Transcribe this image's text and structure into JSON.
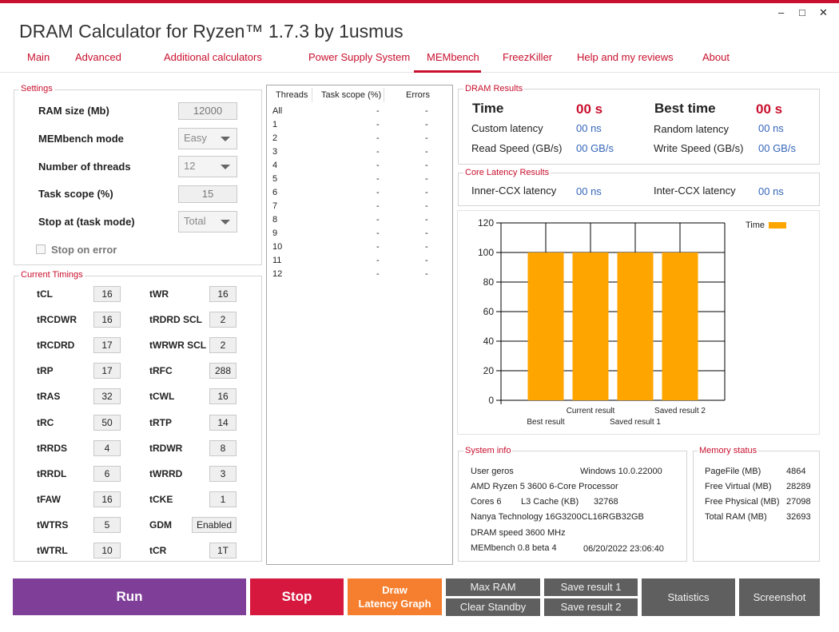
{
  "window": {
    "title": "DRAM Calculator for Ryzen™ 1.7.3 by 1usmus",
    "minimize": "–",
    "maximize": "□",
    "close": "✕"
  },
  "tabs": [
    "Main",
    "Advanced",
    "Additional calculators",
    "Power Supply System",
    "MEMbench",
    "FreezKiller",
    "Help and my reviews",
    "About"
  ],
  "settings": {
    "title": "Settings",
    "ram_size_label": "RAM size (Mb)",
    "ram_size_value": "12000",
    "mode_label": "MEMbench mode",
    "mode_value": "Easy",
    "threads_label": "Number of threads",
    "threads_value": "12",
    "scope_label": "Task scope (%)",
    "scope_value": "15",
    "stop_label": "Stop at (task mode)",
    "stop_value": "Total",
    "stop_error_label": "Stop on error"
  },
  "timings": {
    "title": "Current Timings",
    "left": [
      {
        "name": "tCL",
        "value": "16"
      },
      {
        "name": "tRCDWR",
        "value": "16"
      },
      {
        "name": "tRCDRD",
        "value": "17"
      },
      {
        "name": "tRP",
        "value": "17"
      },
      {
        "name": "tRAS",
        "value": "32"
      },
      {
        "name": "tRC",
        "value": "50"
      },
      {
        "name": "tRRDS",
        "value": "4"
      },
      {
        "name": "tRRDL",
        "value": "6"
      },
      {
        "name": "tFAW",
        "value": "16"
      },
      {
        "name": "tWTRS",
        "value": "5"
      },
      {
        "name": "tWTRL",
        "value": "10"
      }
    ],
    "right": [
      {
        "name": "tWR",
        "value": "16"
      },
      {
        "name": "tRDRD SCL",
        "value": "2"
      },
      {
        "name": "tWRWR SCL",
        "value": "2"
      },
      {
        "name": "tRFC",
        "value": "288"
      },
      {
        "name": "tCWL",
        "value": "16"
      },
      {
        "name": "tRTP",
        "value": "14"
      },
      {
        "name": "tRDWR",
        "value": "8"
      },
      {
        "name": "tWRRD",
        "value": "3"
      },
      {
        "name": "tCKE",
        "value": "1"
      },
      {
        "name": "GDM",
        "value": "Enabled"
      },
      {
        "name": "tCR",
        "value": "1T"
      }
    ]
  },
  "threads_table": {
    "headers": [
      "Threads",
      "Task scope (%)",
      "Errors"
    ],
    "rows": [
      {
        "t": "All",
        "s": "-",
        "e": "-"
      },
      {
        "t": "1",
        "s": "-",
        "e": "-"
      },
      {
        "t": "2",
        "s": "-",
        "e": "-"
      },
      {
        "t": "3",
        "s": "-",
        "e": "-"
      },
      {
        "t": "4",
        "s": "-",
        "e": "-"
      },
      {
        "t": "5",
        "s": "-",
        "e": "-"
      },
      {
        "t": "6",
        "s": "-",
        "e": "-"
      },
      {
        "t": "7",
        "s": "-",
        "e": "-"
      },
      {
        "t": "8",
        "s": "-",
        "e": "-"
      },
      {
        "t": "9",
        "s": "-",
        "e": "-"
      },
      {
        "t": "10",
        "s": "-",
        "e": "-"
      },
      {
        "t": "11",
        "s": "-",
        "e": "-"
      },
      {
        "t": "12",
        "s": "-",
        "e": "-"
      }
    ]
  },
  "dram_results": {
    "title": "DRAM Results",
    "time_label": "Time",
    "time_value": "00 s",
    "best_label": "Best time",
    "best_value": "00 s",
    "custom_label": "Custom latency",
    "custom_value": "00 ns",
    "random_label": "Random latency",
    "random_value": "00 ns",
    "read_label": "Read Speed (GB/s)",
    "read_value": "00 GB/s",
    "write_label": "Write Speed (GB/s)",
    "write_value": "00 GB/s"
  },
  "core_latency": {
    "title": "Core Latency Results",
    "inner_label": "Inner-CCX latency",
    "inner_value": "00 ns",
    "inter_label": "Inter-CCX latency",
    "inter_value": "00 ns"
  },
  "chart_data": {
    "type": "bar",
    "categories": [
      "Best result",
      "Current result",
      "Saved result 1",
      "Saved result 2"
    ],
    "series": [
      {
        "name": "Time",
        "values": [
          100,
          100,
          100,
          100
        ]
      }
    ],
    "yticks": [
      "0",
      "20",
      "40",
      "60",
      "80",
      "100",
      "120"
    ],
    "ylim": [
      0,
      120
    ],
    "legend": "top-right",
    "color": "#ffa500",
    "grid": true
  },
  "system_info": {
    "title": "System info",
    "user": "User geros",
    "os": "Windows 10.0.22000",
    "cpu": "AMD Ryzen 5 3600 6-Core Processor",
    "cores": "Cores 6",
    "l3_label": "L3 Cache (KB)",
    "l3_value": "32768",
    "ram": "Nanya Technology 16G3200CL16RGB32GB",
    "speed": "DRAM speed 3600 MHz",
    "bench": "MEMbench 0.8 beta 4",
    "date": "06/20/2022 23:06:40"
  },
  "memory_status": {
    "title": "Memory status",
    "rows": [
      {
        "label": "PageFile (MB)",
        "value": "4864"
      },
      {
        "label": "Free Virtual (MB)",
        "value": "28289"
      },
      {
        "label": "Free Physical (MB)",
        "value": "27098"
      },
      {
        "label": "Total RAM (MB)",
        "value": "32693"
      }
    ]
  },
  "buttons": {
    "run": "Run",
    "stop": "Stop",
    "draw_line1": "Draw",
    "draw_line2": "Latency Graph",
    "max_ram": "Max RAM",
    "clear_standby": "Clear Standby",
    "save1": "Save result 1",
    "save2": "Save result 2",
    "statistics": "Statistics",
    "screenshot": "Screenshot",
    "colors": {
      "run": "#7f3f98",
      "stop": "#d6183f",
      "draw": "#f57f2e",
      "gray": "#5f5f5f"
    }
  }
}
